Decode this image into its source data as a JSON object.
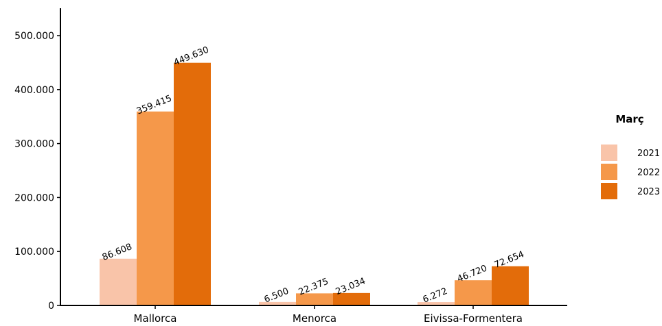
{
  "chart_data": {
    "type": "bar",
    "categories": [
      "Mallorca",
      "Menorca",
      "Eivissa-Formentera"
    ],
    "series": [
      {
        "name": "2021",
        "values": [
          86608,
          6500,
          6272
        ],
        "labels": [
          "86.608",
          "6.500",
          "6.272"
        ],
        "color": "#f9c4a9"
      },
      {
        "name": "2022",
        "values": [
          359415,
          22375,
          46720
        ],
        "labels": [
          "359.415",
          "22.375",
          "46.720"
        ],
        "color": "#f5984a"
      },
      {
        "name": "2023",
        "values": [
          449630,
          23034,
          72654
        ],
        "labels": [
          "449.630",
          "23.034",
          "72.654"
        ],
        "color": "#e36c0a"
      }
    ],
    "ylim": [
      0,
      500000
    ],
    "yticks": [
      0,
      100000,
      200000,
      300000,
      400000,
      500000
    ],
    "ytick_labels": [
      "0",
      "100.000",
      "200.000",
      "300.000",
      "400.000",
      "500.000"
    ],
    "legend_title": "Març",
    "legend_position": "right",
    "grid": false
  }
}
